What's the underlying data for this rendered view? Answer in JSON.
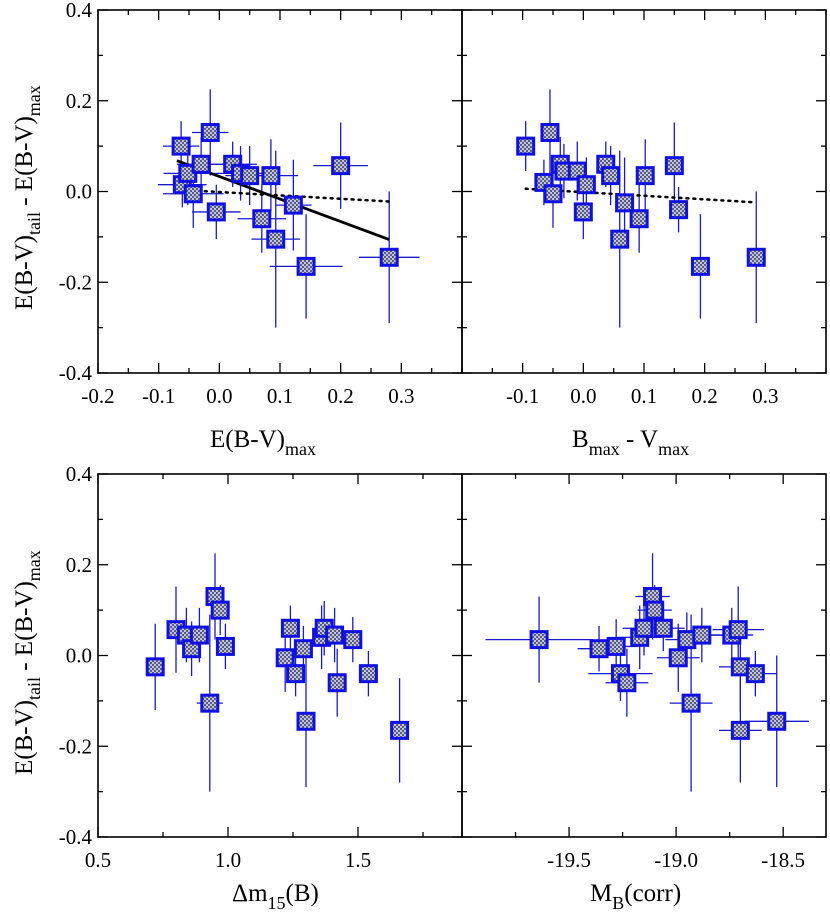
{
  "colors": {
    "marker_edge": "#1010e0",
    "errorbar": "#1a1acc",
    "fit_line": "#000000",
    "axes": "#000000"
  },
  "chart_data": [
    {
      "type": "scatter",
      "name": "top-left",
      "xlabel": {
        "main": "E(B-V)",
        "sub": "max"
      },
      "ylabel": {
        "part1": "E(B-V)",
        "sub1": "tail",
        "part2": " - E(B-V)",
        "sub2": "max"
      },
      "xlim": [
        -0.2,
        0.4
      ],
      "ylim": [
        -0.4,
        0.4
      ],
      "xticks": [
        -0.2,
        -0.1,
        0.0,
        0.1,
        0.2,
        0.3
      ],
      "xtick_labels": [
        "-0.2",
        "-0.1",
        "0.0",
        "0.1",
        "0.2",
        "0.3"
      ],
      "yticks": [
        -0.4,
        -0.2,
        0.0,
        0.2,
        0.4
      ],
      "ytick_labels": [
        "-0.4",
        "-0.2",
        "0.0",
        "0.2",
        "0.4"
      ],
      "points": [
        {
          "x": -0.063,
          "y": 0.1,
          "xerr": 0.03,
          "yerr": 0.055
        },
        {
          "x": -0.061,
          "y": 0.015,
          "xerr": 0.04,
          "yerr": 0.05
        },
        {
          "x": -0.052,
          "y": 0.04,
          "xerr": 0.04,
          "yerr": 0.07
        },
        {
          "x": -0.043,
          "y": -0.005,
          "xerr": 0.05,
          "yerr": 0.075
        },
        {
          "x": -0.03,
          "y": 0.06,
          "xerr": 0.04,
          "yerr": 0.06
        },
        {
          "x": -0.015,
          "y": 0.13,
          "xerr": 0.03,
          "yerr": 0.095
        },
        {
          "x": -0.005,
          "y": -0.045,
          "xerr": 0.04,
          "yerr": 0.06
        },
        {
          "x": 0.022,
          "y": 0.06,
          "xerr": 0.04,
          "yerr": 0.05
        },
        {
          "x": 0.035,
          "y": 0.04,
          "xerr": 0.045,
          "yerr": 0.06
        },
        {
          "x": 0.05,
          "y": 0.035,
          "xerr": 0.04,
          "yerr": 0.065
        },
        {
          "x": 0.07,
          "y": -0.06,
          "xerr": 0.04,
          "yerr": 0.075
        },
        {
          "x": 0.085,
          "y": 0.035,
          "xerr": 0.045,
          "yerr": 0.08
        },
        {
          "x": 0.093,
          "y": -0.105,
          "xerr": 0.04,
          "yerr": 0.195
        },
        {
          "x": 0.122,
          "y": -0.03,
          "xerr": 0.03,
          "yerr": 0.1
        },
        {
          "x": 0.143,
          "y": -0.165,
          "xerr": 0.06,
          "yerr": 0.115
        },
        {
          "x": 0.2,
          "y": 0.057,
          "xerr": 0.045,
          "yerr": 0.095
        },
        {
          "x": 0.28,
          "y": -0.145,
          "xerr": 0.05,
          "yerr": 0.145
        }
      ],
      "fit_solid": {
        "x": [
          -0.07,
          0.28
        ],
        "y": [
          0.068,
          -0.106
        ]
      },
      "fit_dotted": {
        "x": [
          -0.07,
          0.28
        ],
        "y": [
          0.004,
          -0.022
        ]
      }
    },
    {
      "type": "scatter",
      "name": "top-right",
      "xlabel": {
        "part1": "B",
        "sub1": "max",
        "part2": " - V",
        "sub2": "max"
      },
      "xlim": [
        -0.2,
        0.4
      ],
      "ylim": [
        -0.4,
        0.4
      ],
      "xticks": [
        -0.1,
        0.0,
        0.1,
        0.2,
        0.3
      ],
      "xtick_labels": [
        "-0.1",
        "0.0",
        "0.1",
        "0.2",
        "0.3"
      ],
      "yticks": [
        -0.4,
        -0.2,
        0.0,
        0.2,
        0.4
      ],
      "points": [
        {
          "x": -0.095,
          "y": 0.1,
          "yerr": 0.055
        },
        {
          "x": -0.065,
          "y": 0.02,
          "yerr": 0.05
        },
        {
          "x": -0.055,
          "y": 0.13,
          "yerr": 0.095
        },
        {
          "x": -0.05,
          "y": -0.005,
          "yerr": 0.075
        },
        {
          "x": -0.038,
          "y": 0.06,
          "yerr": 0.06
        },
        {
          "x": -0.032,
          "y": 0.045,
          "yerr": 0.06
        },
        {
          "x": -0.01,
          "y": 0.045,
          "yerr": 0.065
        },
        {
          "x": 0.0,
          "y": -0.045,
          "yerr": 0.06
        },
        {
          "x": 0.005,
          "y": 0.015,
          "yerr": 0.06
        },
        {
          "x": 0.037,
          "y": 0.06,
          "yerr": 0.05
        },
        {
          "x": 0.045,
          "y": 0.035,
          "yerr": 0.065
        },
        {
          "x": 0.06,
          "y": -0.105,
          "yerr": 0.195
        },
        {
          "x": 0.068,
          "y": -0.025,
          "yerr": 0.1
        },
        {
          "x": 0.092,
          "y": -0.06,
          "yerr": 0.075
        },
        {
          "x": 0.102,
          "y": 0.035,
          "yerr": 0.08
        },
        {
          "x": 0.15,
          "y": 0.057,
          "yerr": 0.095
        },
        {
          "x": 0.157,
          "y": -0.04,
          "yerr": 0.05
        },
        {
          "x": 0.193,
          "y": -0.165,
          "yerr": 0.115
        },
        {
          "x": 0.285,
          "y": -0.145,
          "yerr": 0.145
        }
      ],
      "fit_dotted": {
        "x": [
          -0.095,
          0.285
        ],
        "y": [
          0.006,
          -0.024
        ]
      }
    },
    {
      "type": "scatter",
      "name": "bottom-left",
      "xlabel": {
        "main": "Δm",
        "sub": "15",
        "tail": "(B)"
      },
      "ylabel": {
        "part1": "E(B-V)",
        "sub1": "tail",
        "part2": " - E(B-V)",
        "sub2": "max"
      },
      "xlim": [
        0.5,
        1.9
      ],
      "ylim": [
        -0.4,
        0.4
      ],
      "xticks": [
        0.5,
        1.0,
        1.5
      ],
      "xtick_labels": [
        "0.5",
        "1.0",
        "1.5"
      ],
      "yticks": [
        -0.4,
        -0.2,
        0.0,
        0.2,
        0.4
      ],
      "ytick_labels": [
        "-0.4",
        "-0.2",
        "0.0",
        "0.2",
        "0.4"
      ],
      "points": [
        {
          "x": 0.72,
          "y": -0.025,
          "yerr": 0.095
        },
        {
          "x": 0.8,
          "y": 0.057,
          "yerr": 0.095
        },
        {
          "x": 0.84,
          "y": 0.045,
          "yerr": 0.06
        },
        {
          "x": 0.86,
          "y": 0.015,
          "yerr": 0.06
        },
        {
          "x": 0.89,
          "y": 0.045,
          "yerr": 0.06
        },
        {
          "x": 0.93,
          "y": -0.105,
          "xerr": 0.05,
          "yerr": 0.195
        },
        {
          "x": 0.95,
          "y": 0.13,
          "yerr": 0.095
        },
        {
          "x": 0.97,
          "y": 0.1,
          "yerr": 0.055
        },
        {
          "x": 0.99,
          "y": 0.02,
          "yerr": 0.05
        },
        {
          "x": 1.22,
          "y": -0.005,
          "yerr": 0.075
        },
        {
          "x": 1.24,
          "y": 0.06,
          "yerr": 0.05
        },
        {
          "x": 1.26,
          "y": -0.04,
          "yerr": 0.05
        },
        {
          "x": 1.29,
          "y": 0.015,
          "yerr": 0.05
        },
        {
          "x": 1.3,
          "y": -0.145,
          "yerr": 0.145
        },
        {
          "x": 1.36,
          "y": 0.04,
          "yerr": 0.07
        },
        {
          "x": 1.37,
          "y": 0.06,
          "yerr": 0.06
        },
        {
          "x": 1.41,
          "y": 0.045,
          "yerr": 0.06
        },
        {
          "x": 1.42,
          "y": -0.06,
          "yerr": 0.075
        },
        {
          "x": 1.48,
          "y": 0.035,
          "yerr": 0.05
        },
        {
          "x": 1.54,
          "y": -0.04,
          "yerr": 0.05
        },
        {
          "x": 1.66,
          "y": -0.165,
          "yerr": 0.115
        }
      ]
    },
    {
      "type": "scatter",
      "name": "bottom-right",
      "xlabel": {
        "main": "M",
        "sub": "B",
        "tail": "(corr)"
      },
      "xlim": [
        -20.0,
        -18.3
      ],
      "ylim": [
        -0.4,
        0.4
      ],
      "xticks": [
        -19.5,
        -19.0,
        -18.5
      ],
      "xtick_labels": [
        "-19.5",
        "-19.0",
        "-18.5"
      ],
      "yticks": [
        -0.4,
        -0.2,
        0.0,
        0.2,
        0.4
      ],
      "points": [
        {
          "x": -19.64,
          "y": 0.035,
          "xerr": 0.25,
          "yerr": 0.095
        },
        {
          "x": -19.36,
          "y": 0.015,
          "xerr": 0.1,
          "yerr": 0.05
        },
        {
          "x": -19.28,
          "y": 0.02,
          "xerr": 0.1,
          "yerr": 0.06
        },
        {
          "x": -19.26,
          "y": -0.04,
          "xerr": 0.15,
          "yerr": 0.06
        },
        {
          "x": -19.23,
          "y": -0.06,
          "xerr": 0.1,
          "yerr": 0.075
        },
        {
          "x": -19.17,
          "y": 0.04,
          "xerr": 0.1,
          "yerr": 0.07
        },
        {
          "x": -19.15,
          "y": 0.06,
          "xerr": 0.1,
          "yerr": 0.06
        },
        {
          "x": -19.11,
          "y": 0.13,
          "xerr": 0.08,
          "yerr": 0.095
        },
        {
          "x": -19.1,
          "y": 0.1,
          "xerr": 0.08,
          "yerr": 0.055
        },
        {
          "x": -19.06,
          "y": 0.06,
          "xerr": 0.1,
          "yerr": 0.05
        },
        {
          "x": -18.99,
          "y": -0.005,
          "xerr": 0.1,
          "yerr": 0.075
        },
        {
          "x": -18.95,
          "y": 0.035,
          "xerr": 0.1,
          "yerr": 0.06
        },
        {
          "x": -18.93,
          "y": -0.105,
          "xerr": 0.1,
          "yerr": 0.195
        },
        {
          "x": -18.88,
          "y": 0.045,
          "xerr": 0.1,
          "yerr": 0.06
        },
        {
          "x": -18.74,
          "y": 0.045,
          "xerr": 0.1,
          "yerr": 0.06
        },
        {
          "x": -18.71,
          "y": 0.057,
          "xerr": 0.12,
          "yerr": 0.095
        },
        {
          "x": -18.7,
          "y": -0.025,
          "xerr": 0.1,
          "yerr": 0.1
        },
        {
          "x": -18.7,
          "y": -0.165,
          "xerr": 0.1,
          "yerr": 0.115
        },
        {
          "x": -18.63,
          "y": -0.04,
          "xerr": 0.1,
          "yerr": 0.05
        },
        {
          "x": -18.53,
          "y": -0.145,
          "xerr": 0.15,
          "yerr": 0.145
        }
      ]
    }
  ]
}
